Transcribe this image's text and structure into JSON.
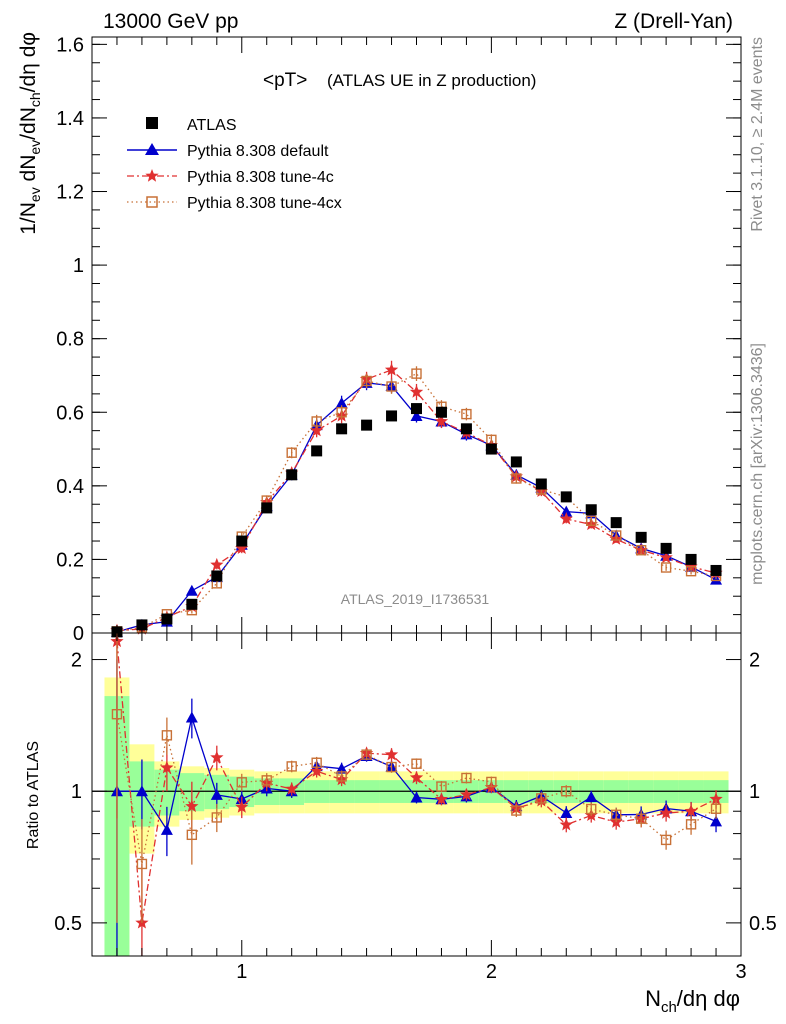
{
  "header": {
    "energy_label": "13000 GeV pp",
    "process_label": "Z (Drell-Yan)"
  },
  "side_texts": {
    "rivet": "Rivet 3.1.10, ≥ 2.4M events",
    "mcplots": "mcplots.cern.ch [arXiv:1306.3436]"
  },
  "chart_data": {
    "type": "line",
    "title_main": "<pT>",
    "title_sub": "(ATLAS UE in Z production)",
    "watermark": "ATLAS_2019_I1736531",
    "ylabel": "1/N_ev dN_ev/dN_ch/dη dφ",
    "xlabel": "N_ch/dη dφ",
    "ratio_ylabel": "Ratio to ATLAS",
    "xlim": [
      0.4,
      3.0
    ],
    "ylim": [
      0,
      1.62
    ],
    "ratio_ylim": [
      0.42,
      2.3
    ],
    "ratio_scale": "log",
    "x_ticks": [
      "1",
      "2",
      "3"
    ],
    "y_ticks": [
      "0",
      "0.2",
      "0.4",
      "0.6",
      "0.8",
      "1",
      "1.2",
      "1.4",
      "1.6"
    ],
    "ratio_ticks": [
      "0.5",
      "1",
      "2"
    ],
    "legend_position": "top-left",
    "x": [
      0.5,
      0.6,
      0.7,
      0.8,
      0.9,
      1.0,
      1.1,
      1.2,
      1.3,
      1.4,
      1.5,
      1.6,
      1.7,
      1.8,
      1.9,
      2.0,
      2.1,
      2.2,
      2.3,
      2.4,
      2.5,
      2.6,
      2.7,
      2.8,
      2.9
    ],
    "series": [
      {
        "name": "ATLAS",
        "color": "#000000",
        "marker": "filled-square",
        "values": [
          0.003,
          0.022,
          0.038,
          0.078,
          0.155,
          0.25,
          0.34,
          0.43,
          0.495,
          0.555,
          0.565,
          0.59,
          0.61,
          0.6,
          0.555,
          0.5,
          0.465,
          0.405,
          0.37,
          0.335,
          0.3,
          0.26,
          0.23,
          0.2,
          0.17
        ],
        "errors": [
          0.002,
          0.003,
          0.003,
          0.004,
          0.005,
          0.006,
          0.007,
          0.008,
          0.008,
          0.009,
          0.009,
          0.009,
          0.009,
          0.009,
          0.009,
          0.008,
          0.008,
          0.007,
          0.007,
          0.006,
          0.006,
          0.005,
          0.005,
          0.005,
          0.004
        ],
        "band_inner": [
          0.65,
          0.17,
          0.12,
          0.1,
          0.09,
          0.08,
          0.07,
          0.07,
          0.06,
          0.06,
          0.06,
          0.06,
          0.06,
          0.06,
          0.06,
          0.06,
          0.06,
          0.06,
          0.06,
          0.06,
          0.06,
          0.06,
          0.06,
          0.06,
          0.06
        ],
        "band_outer": [
          0.82,
          0.28,
          0.17,
          0.14,
          0.13,
          0.12,
          0.11,
          0.11,
          0.11,
          0.11,
          0.11,
          0.11,
          0.11,
          0.11,
          0.11,
          0.11,
          0.11,
          0.11,
          0.11,
          0.11,
          0.11,
          0.11,
          0.11,
          0.11,
          0.11
        ]
      },
      {
        "name": "Pythia 8.308 default",
        "color": "#0000cc",
        "marker": "filled-triangle",
        "line": "solid",
        "values": [
          0.003,
          0.022,
          0.031,
          0.115,
          0.152,
          0.24,
          0.345,
          0.43,
          0.565,
          0.625,
          0.68,
          0.672,
          0.59,
          0.575,
          0.54,
          0.51,
          0.43,
          0.395,
          0.33,
          0.325,
          0.265,
          0.23,
          0.21,
          0.18,
          0.145
        ],
        "errors": [
          0.003,
          0.004,
          0.004,
          0.012,
          0.01,
          0.012,
          0.014,
          0.015,
          0.018,
          0.02,
          0.02,
          0.02,
          0.018,
          0.017,
          0.017,
          0.015,
          0.014,
          0.013,
          0.012,
          0.011,
          0.01,
          0.01,
          0.009,
          0.009,
          0.008
        ]
      },
      {
        "name": "Pythia 8.308 tune-4c",
        "color": "#e03030",
        "marker": "star",
        "line": "dash-dot",
        "values": [
          0.0066,
          0.011,
          0.043,
          0.072,
          0.185,
          0.23,
          0.355,
          0.435,
          0.55,
          0.59,
          0.69,
          0.715,
          0.655,
          0.575,
          0.545,
          0.51,
          0.425,
          0.385,
          0.31,
          0.295,
          0.255,
          0.225,
          0.205,
          0.18,
          0.163
        ],
        "errors": [
          0.004,
          0.004,
          0.005,
          0.01,
          0.012,
          0.013,
          0.015,
          0.015,
          0.018,
          0.02,
          0.02,
          0.025,
          0.022,
          0.018,
          0.017,
          0.015,
          0.014,
          0.013,
          0.012,
          0.011,
          0.01,
          0.01,
          0.009,
          0.009,
          0.008
        ]
      },
      {
        "name": "Pythia 8.308 tune-4cx",
        "color": "#c87137",
        "marker": "open-square",
        "line": "dotted",
        "values": [
          0.0045,
          0.015,
          0.051,
          0.062,
          0.135,
          0.262,
          0.36,
          0.49,
          0.575,
          0.6,
          0.685,
          0.67,
          0.705,
          0.615,
          0.595,
          0.525,
          0.42,
          0.39,
          0.37,
          0.305,
          0.265,
          0.225,
          0.178,
          0.168,
          0.155
        ],
        "errors": [
          0.003,
          0.004,
          0.005,
          0.009,
          0.01,
          0.012,
          0.014,
          0.015,
          0.018,
          0.019,
          0.02,
          0.02,
          0.02,
          0.018,
          0.017,
          0.015,
          0.014,
          0.013,
          0.012,
          0.011,
          0.01,
          0.01,
          0.009,
          0.009,
          0.008
        ]
      }
    ]
  }
}
